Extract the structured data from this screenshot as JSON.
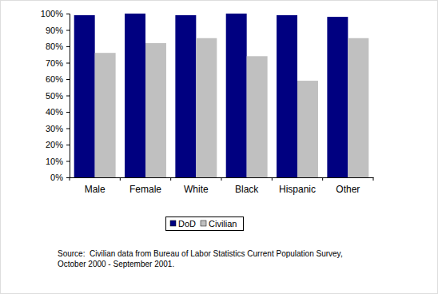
{
  "chart_data": {
    "type": "bar",
    "categories": [
      "Male",
      "Female",
      "White",
      "Black",
      "Hispanic",
      "Other"
    ],
    "series": [
      {
        "name": "DoD",
        "color": "#000080",
        "values": [
          99,
          100,
          99,
          100,
          99,
          98
        ]
      },
      {
        "name": "Civilian",
        "color": "#c0c0c0",
        "values": [
          76,
          82,
          85,
          74,
          59,
          85
        ]
      }
    ],
    "ylim": [
      0,
      100
    ],
    "yticks": [
      {
        "value": 0,
        "label": "0%"
      },
      {
        "value": 10,
        "label": "10%"
      },
      {
        "value": 20,
        "label": "20%"
      },
      {
        "value": 30,
        "label": "30%"
      },
      {
        "value": 40,
        "label": "40%"
      },
      {
        "value": 50,
        "label": "50%"
      },
      {
        "value": 60,
        "label": "60%"
      },
      {
        "value": 70,
        "label": "70%"
      },
      {
        "value": 80,
        "label": "80%"
      },
      {
        "value": 90,
        "label": "90%"
      },
      {
        "value": 100,
        "label": "100%"
      }
    ],
    "grid": false,
    "legend": "bottom",
    "annotations": [
      "Source:  Civilian data from Bureau of Labor Statistics Current Population Survey,",
      "October 2000 - September 2001."
    ]
  }
}
